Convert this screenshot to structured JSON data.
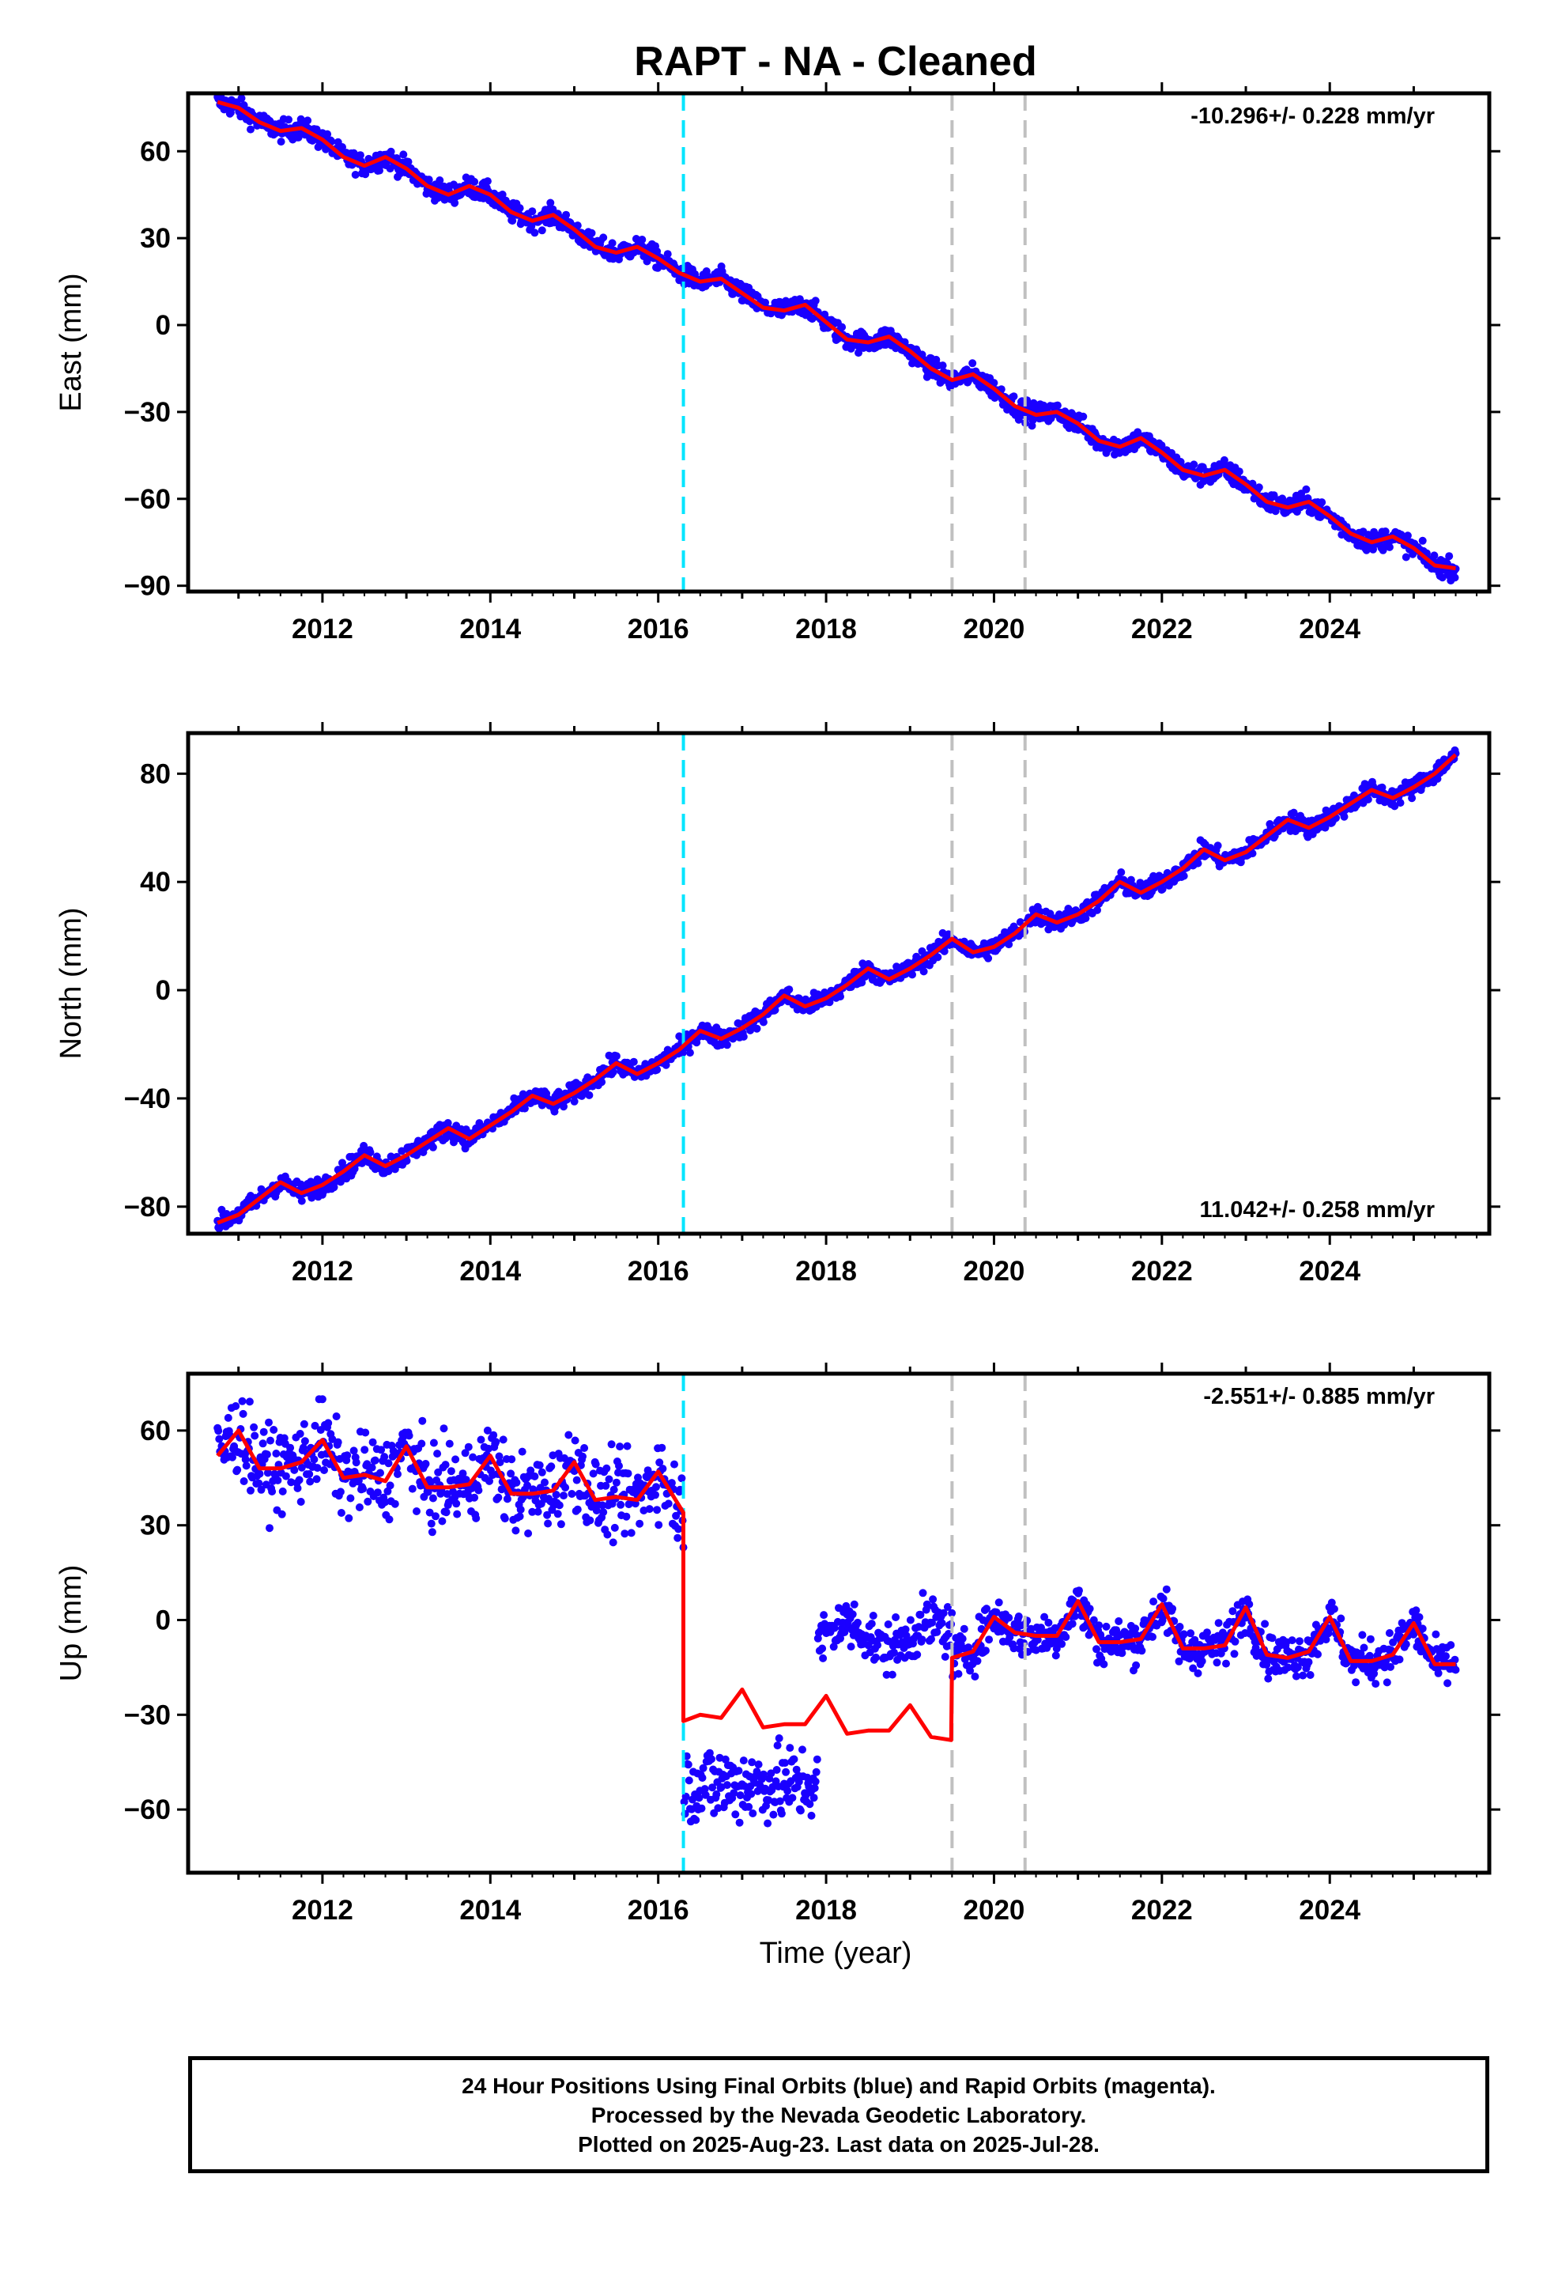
{
  "chart_data": {
    "type": "scatter",
    "title": "RAPT  - NA - Cleaned",
    "xlabel": "Time (year)",
    "xlim": [
      2010.4,
      2025.9
    ],
    "x_ticks": [
      "2012",
      "2014",
      "2016",
      "2018",
      "2020",
      "2022",
      "2024"
    ],
    "x_tick_values": [
      2012,
      2014,
      2016,
      2018,
      2020,
      2022,
      2024
    ],
    "grid": false,
    "event_lines": [
      {
        "x": 2016.3,
        "color": "#00e5ff",
        "style": "dashed"
      },
      {
        "x": 2019.5,
        "color": "#c0c0c0",
        "style": "dashed"
      },
      {
        "x": 2020.37,
        "color": "#c0c0c0",
        "style": "dashed"
      }
    ],
    "colors": {
      "points": "#1a00ff",
      "model": "#ff0000"
    },
    "panels": [
      {
        "ylabel": "East (mm)",
        "ylim": [
          -92,
          80
        ],
        "y_ticks": [
          60,
          30,
          0,
          -30,
          -60,
          -90
        ],
        "y_tick_labels": [
          "60",
          "30",
          "0",
          "−30",
          "−60",
          "−90"
        ],
        "rate": "-10.296+/- 0.228 mm/yr",
        "rate_position": "top-right",
        "model": {
          "x": [
            2010.75,
            2011.0,
            2011.25,
            2011.5,
            2011.75,
            2012.0,
            2012.25,
            2012.5,
            2012.75,
            2013.0,
            2013.25,
            2013.5,
            2013.75,
            2014.0,
            2014.25,
            2014.5,
            2014.75,
            2015.0,
            2015.25,
            2015.5,
            2015.75,
            2016.0,
            2016.25,
            2016.5,
            2016.75,
            2017.0,
            2017.25,
            2017.5,
            2017.75,
            2018.0,
            2018.25,
            2018.5,
            2018.75,
            2019.0,
            2019.25,
            2019.5,
            2019.75,
            2020.0,
            2020.25,
            2020.5,
            2020.75,
            2021.0,
            2021.25,
            2021.5,
            2021.75,
            2022.0,
            2022.25,
            2022.5,
            2022.75,
            2023.0,
            2023.25,
            2023.5,
            2023.75,
            2024.0,
            2024.25,
            2024.5,
            2024.75,
            2025.0,
            2025.25,
            2025.5
          ],
          "y": [
            77,
            75,
            70,
            67,
            68,
            64,
            58,
            55,
            58,
            54,
            48,
            45,
            48,
            45,
            39,
            36,
            38,
            33,
            27,
            25,
            27,
            23,
            18,
            15,
            16,
            11,
            6,
            5,
            7,
            1,
            -5,
            -6,
            -4,
            -9,
            -15,
            -19,
            -17,
            -22,
            -28,
            -31,
            -30,
            -34,
            -40,
            -42,
            -39,
            -44,
            -50,
            -52,
            -50,
            -55,
            -61,
            -63,
            -61,
            -66,
            -72,
            -75,
            -73,
            -77,
            -83,
            -84
          ]
        },
        "scatter_spread": 2.5
      },
      {
        "ylabel": "North (mm)",
        "ylim": [
          -90,
          95
        ],
        "y_ticks": [
          80,
          40,
          0,
          -40,
          -80
        ],
        "y_tick_labels": [
          "80",
          "40",
          "0",
          "−40",
          "−80"
        ],
        "rate": "11.042+/- 0.258 mm/yr",
        "rate_position": "bottom-right",
        "model": {
          "x": [
            2010.75,
            2011.0,
            2011.25,
            2011.5,
            2011.75,
            2012.0,
            2012.25,
            2012.5,
            2012.75,
            2013.0,
            2013.25,
            2013.5,
            2013.75,
            2014.0,
            2014.25,
            2014.5,
            2014.75,
            2015.0,
            2015.25,
            2015.5,
            2015.75,
            2016.0,
            2016.25,
            2016.5,
            2016.75,
            2017.0,
            2017.25,
            2017.5,
            2017.75,
            2018.0,
            2018.25,
            2018.5,
            2018.75,
            2019.0,
            2019.25,
            2019.5,
            2019.75,
            2020.0,
            2020.25,
            2020.5,
            2020.75,
            2021.0,
            2021.25,
            2021.5,
            2021.75,
            2022.0,
            2022.25,
            2022.5,
            2022.75,
            2023.0,
            2023.25,
            2023.5,
            2023.75,
            2024.0,
            2024.25,
            2024.5,
            2024.75,
            2025.0,
            2025.25,
            2025.5
          ],
          "y": [
            -86,
            -83,
            -77,
            -71,
            -75,
            -72,
            -67,
            -61,
            -65,
            -61,
            -56,
            -51,
            -55,
            -50,
            -45,
            -39,
            -42,
            -38,
            -33,
            -27,
            -31,
            -27,
            -22,
            -15,
            -18,
            -14,
            -9,
            -2,
            -6,
            -3,
            2,
            8,
            4,
            8,
            13,
            19,
            14,
            16,
            21,
            28,
            25,
            28,
            33,
            40,
            36,
            40,
            45,
            52,
            48,
            51,
            57,
            63,
            60,
            64,
            69,
            74,
            71,
            75,
            80,
            87
          ]
        },
        "scatter_spread": 2.5
      },
      {
        "ylabel": "Up (mm)",
        "ylim": [
          -80,
          78
        ],
        "y_ticks": [
          60,
          30,
          0,
          -30,
          -60
        ],
        "y_tick_labels": [
          "60",
          "30",
          "0",
          "−30",
          "−60"
        ],
        "rate": "-2.551+/- 0.885 mm/yr",
        "rate_position": "top-right",
        "model": {
          "x": [
            2010.75,
            2011.0,
            2011.25,
            2011.5,
            2011.75,
            2012.0,
            2012.25,
            2012.5,
            2012.75,
            2013.0,
            2013.25,
            2013.5,
            2013.75,
            2014.0,
            2014.25,
            2014.5,
            2014.75,
            2015.0,
            2015.25,
            2015.5,
            2015.75,
            2016.0,
            2016.3,
            2016.3,
            2016.5,
            2016.75,
            2017.0,
            2017.25,
            2017.5,
            2017.75,
            2018.0,
            2018.25,
            2018.5,
            2018.75,
            2019.0,
            2019.25,
            2019.49,
            2019.5,
            2019.75,
            2020.0,
            2020.25,
            2020.5,
            2020.75,
            2021.0,
            2021.25,
            2021.5,
            2021.75,
            2022.0,
            2022.25,
            2022.5,
            2022.75,
            2023.0,
            2023.25,
            2023.5,
            2023.75,
            2024.0,
            2024.25,
            2024.5,
            2024.75,
            2025.0,
            2025.25,
            2025.5
          ],
          "y": [
            52,
            60,
            48,
            48,
            50,
            57,
            45,
            46,
            44,
            55,
            42,
            42,
            43,
            52,
            40,
            40,
            41,
            50,
            38,
            39,
            38,
            47,
            34,
            -32,
            -30,
            -31,
            -22,
            -34,
            -33,
            -33,
            -24,
            -36,
            -35,
            -35,
            -27,
            -37,
            -38,
            -12,
            -10,
            1,
            -4,
            -5,
            -5,
            6,
            -7,
            -7,
            -6,
            5,
            -9,
            -9,
            -8,
            4,
            -11,
            -12,
            -10,
            1,
            -13,
            -13,
            -11,
            -1,
            -14,
            -14
          ]
        },
        "scatter_spread": 7
      }
    ]
  },
  "footer": {
    "line1": "24 Hour Positions Using Final Orbits (blue) and Rapid Orbits (magenta).",
    "line2": "Processed by the Nevada Geodetic Laboratory.",
    "line3": "Plotted on 2025-Aug-23. Last data on 2025-Jul-28."
  }
}
